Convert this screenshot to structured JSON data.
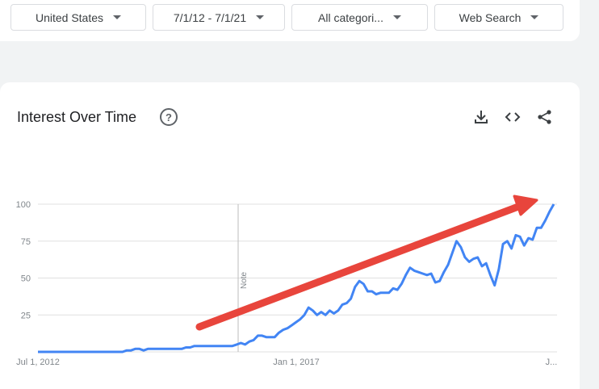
{
  "filters": {
    "region": "United States",
    "date_range": "7/1/12 - 7/1/21",
    "category": "All categori...",
    "search_type": "Web Search"
  },
  "card": {
    "title": "Interest Over Time",
    "help_glyph": "?"
  },
  "icons": [
    "download-icon",
    "embed-icon",
    "share-icon"
  ],
  "colors": {
    "line": "#4285f4",
    "arrow": "#e8453c"
  },
  "chart_data": {
    "type": "line",
    "title": "Interest Over Time",
    "x_tick_labels": [
      "Jul 1, 2012",
      "Jan 1, 2017",
      "J..."
    ],
    "y_ticks": [
      25,
      50,
      75,
      100
    ],
    "ylim": [
      0,
      100
    ],
    "note_label": "Note",
    "grid": true,
    "series": [
      {
        "values": [
          0,
          0,
          0,
          0,
          0,
          0,
          0,
          0,
          0,
          0,
          0,
          0,
          0,
          0,
          0,
          0,
          0,
          0,
          0,
          0,
          0,
          1,
          1,
          2,
          2,
          1,
          2,
          2,
          2,
          2,
          2,
          2,
          2,
          2,
          2,
          3,
          3,
          4,
          4,
          4,
          4,
          4,
          4,
          4,
          4,
          4,
          4,
          5,
          6,
          5,
          7,
          8,
          11,
          11,
          10,
          10,
          10,
          13,
          15,
          16,
          18,
          20,
          22,
          25,
          30,
          28,
          25,
          27,
          25,
          28,
          26,
          28,
          32,
          33,
          36,
          44,
          48,
          46,
          41,
          41,
          39,
          40,
          40,
          40,
          43,
          42,
          46,
          52,
          57,
          55,
          54,
          53,
          52,
          53,
          47,
          48,
          54,
          59,
          67,
          75,
          71,
          64,
          61,
          63,
          64,
          58,
          60,
          52,
          45,
          56,
          73,
          75,
          70,
          79,
          78,
          72,
          77,
          76,
          84,
          84,
          89,
          95,
          100
        ]
      }
    ],
    "annotation": "upward trend arrow"
  }
}
